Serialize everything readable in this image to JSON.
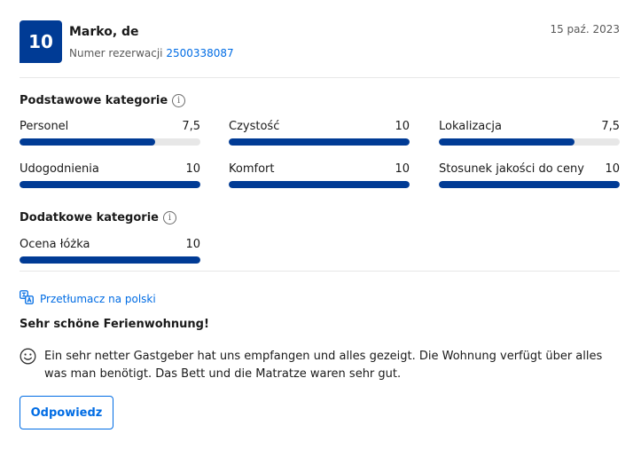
{
  "review": {
    "score": "10",
    "reviewer_name": "Marko, de",
    "booking_label": "Numer rezerwacji",
    "booking_number": "2500338087",
    "date": "15 paź. 2023",
    "translate_label": "Przetłumacz na polski",
    "title": "Sehr schöne Ferienwohnung!",
    "text": "Ein sehr netter Gastgeber hat uns empfangen und alles gezeigt. Die Wohnung verfügt über alles was man benötigt. Das Bett und die Matratze waren sehr gut.",
    "reply_label": "Odpowiedz"
  },
  "basic_categories": {
    "title": "Podstawowe kategorie",
    "items": [
      {
        "label": "Personel",
        "value": "7,5",
        "score": 7.5
      },
      {
        "label": "Czystość",
        "value": "10",
        "score": 10
      },
      {
        "label": "Lokalizacja",
        "value": "7,5",
        "score": 7.5
      },
      {
        "label": "Udogodnienia",
        "value": "10",
        "score": 10
      },
      {
        "label": "Komfort",
        "value": "10",
        "score": 10
      },
      {
        "label": "Stosunek jakości do ceny",
        "value": "10",
        "score": 10
      }
    ]
  },
  "extra_categories": {
    "title": "Dodatkowe kategorie",
    "items": [
      {
        "label": "Ocena łóżka",
        "value": "10",
        "score": 10
      }
    ]
  },
  "score_max": 10,
  "icons": {
    "info": "info-icon",
    "translate": "translate-icon",
    "sentiment": "smile-icon"
  },
  "colors": {
    "brand": "#003b95",
    "link": "#006ce4",
    "track": "#e7e7e7"
  }
}
